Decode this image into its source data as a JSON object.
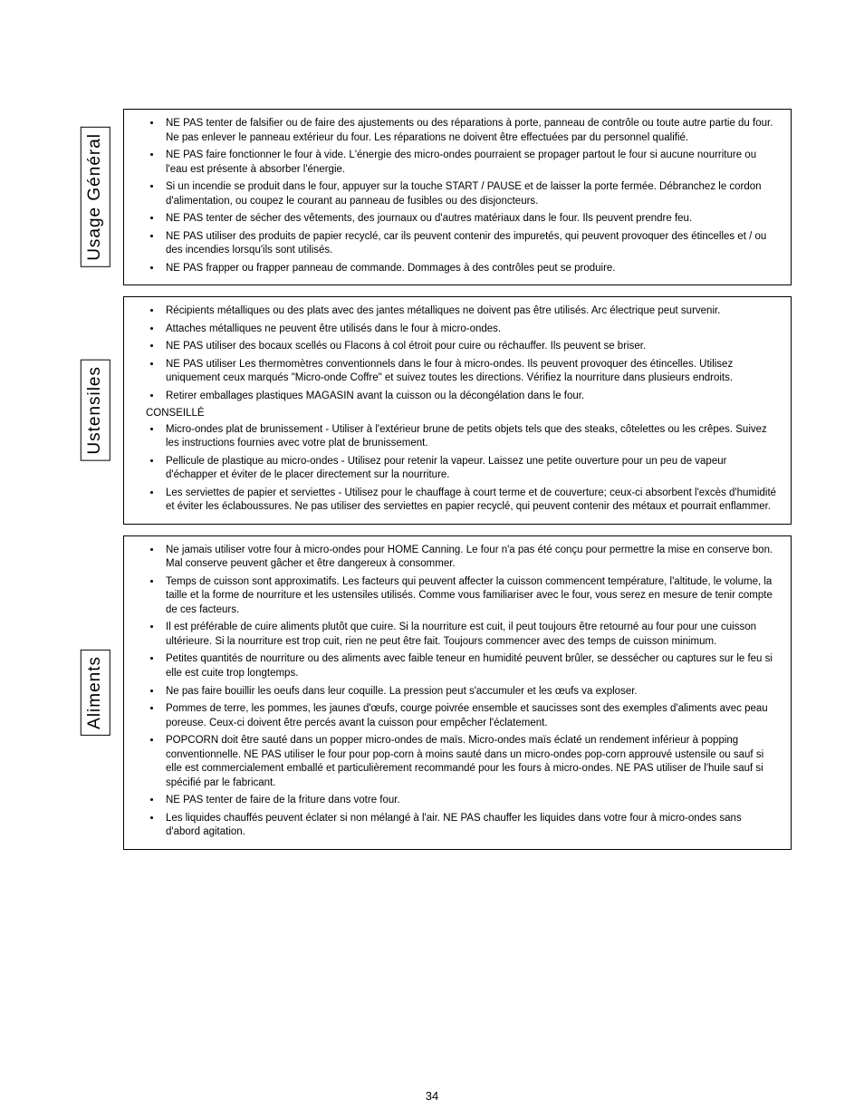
{
  "page_number": "34",
  "sections": [
    {
      "key": "usage",
      "tab_label": "Usage Général",
      "tab_height_hint": 160,
      "items": [
        {
          "type": "li",
          "text": "NE PAS tenter de falsifier ou de faire des ajustements ou des réparations à porte, panneau de contrôle ou toute autre partie du four. Ne pas enlever le panneau extérieur du four. Les réparations ne doivent être effectuées par du personnel qualifié."
        },
        {
          "type": "li",
          "text": "NE PAS faire fonctionner le four à vide. L'énergie des micro-ondes pourraient se propager partout le four si aucune nourriture ou l'eau est présente à absorber l'énergie."
        },
        {
          "type": "li",
          "text": "Si un incendie se produit dans le four, appuyer sur la touche START / PAUSE et de laisser la porte fermée. Débranchez le cordon d'alimentation, ou coupez le courant au panneau de fusibles ou des disjoncteurs."
        },
        {
          "type": "li",
          "text": "NE PAS tenter de sécher des vêtements, des journaux ou d'autres matériaux dans le four. Ils peuvent prendre feu."
        },
        {
          "type": "li",
          "text": "NE PAS utiliser des produits de papier recyclé, car ils peuvent contenir des impuretés, qui peuvent provoquer des étincelles et / ou des incendies lorsqu'ils sont utilisés."
        },
        {
          "type": "li",
          "text": "NE PAS frapper ou frapper panneau de commande. Dommages à des contrôles peut se produire."
        }
      ]
    },
    {
      "key": "ustensiles",
      "tab_label": "Ustensiles",
      "tab_height_hint": 150,
      "items": [
        {
          "type": "li",
          "text": "Récipients métalliques ou des plats avec des jantes métalliques ne doivent pas être utilisés. Arc électrique peut survenir."
        },
        {
          "type": "li",
          "text": "Attaches métalliques ne peuvent être utilisés dans le four à micro-ondes."
        },
        {
          "type": "li",
          "text": "NE PAS utiliser des bocaux scellés ou Flacons à col étroit pour cuire ou réchauffer. Ils peuvent se briser."
        },
        {
          "type": "li",
          "text": "NE PAS utiliser Les thermomètres conventionnels dans le four à micro-ondes. Ils peuvent provoquer des étincelles. Utilisez uniquement ceux marqués \"Micro-onde Coffre\" et suivez toutes les directions. Vérifiez la nourriture dans plusieurs endroits."
        },
        {
          "type": "li",
          "text": "Retirer emballages plastiques MAGASIN avant la cuisson ou la décongélation dans le four."
        },
        {
          "type": "plain",
          "text": "CONSEILLÉ"
        },
        {
          "type": "li",
          "text": "Micro-ondes plat de brunissement - Utiliser à l'extérieur brune de petits objets tels que des steaks, côtelettes ou les crêpes. Suivez les instructions fournies avec votre plat de brunissement."
        },
        {
          "type": "li",
          "text": "Pellicule de plastique au micro-ondes - Utilisez pour retenir la vapeur. Laissez une petite ouverture pour un peu de vapeur d'échapper et éviter de le placer directement sur la nourriture."
        },
        {
          "type": "li",
          "text": "Les serviettes de papier et serviettes - Utilisez pour le chauffage à court terme et de couverture; ceux-ci absorbent l'excès d'humidité et éviter les éclaboussures. Ne pas utiliser des serviettes en papier recyclé, qui peuvent contenir des métaux et pourrait enflammer."
        }
      ]
    },
    {
      "key": "aliments",
      "tab_label": "Aliments",
      "tab_height_hint": 150,
      "items": [
        {
          "type": "li",
          "text": "Ne jamais utiliser votre four à micro-ondes pour HOME Canning. Le four n'a pas été conçu pour permettre la mise en conserve bon. Mal conserve peuvent gâcher et être dangereux à consommer."
        },
        {
          "type": "li",
          "text": "Temps de cuisson sont approximatifs. Les facteurs qui peuvent affecter la cuisson commencent température, l'altitude, le volume, la taille et la forme de nourriture et les ustensiles utilisés. Comme vous familiariser avec le four, vous serez en mesure de tenir compte de ces facteurs."
        },
        {
          "type": "li",
          "text": "Il est préférable de cuire aliments plutôt que cuire. Si la nourriture est cuit, il peut\ntoujours être retourné au four pour une cuisson ultérieure. Si la nourriture est trop cuit, rien ne peut être fait. Toujours commencer avec des temps de cuisson minimum."
        },
        {
          "type": "li",
          "text": "Petites quantités de nourriture ou des aliments avec faible teneur en humidité peuvent brûler, se dessécher ou captures sur le feu si elle est cuite trop longtemps."
        },
        {
          "type": "li",
          "text": "Ne pas faire bouillir les oeufs dans leur coquille. La pression peut s'accumuler et les œufs va exploser."
        },
        {
          "type": "li",
          "text": "Pommes de terre, les pommes, les jaunes d'œufs, courge poivrée ensemble et saucisses sont des exemples d'aliments avec peau poreuse. Ceux-ci doivent être percés avant la cuisson pour empêcher l'éclatement."
        },
        {
          "type": "li",
          "text": "POPCORN doit être sauté dans un popper micro-ondes de maïs. Micro-ondes maïs éclaté un rendement inférieur à popping conventionnelle. NE PAS utiliser le four pour pop-corn à moins sauté dans un micro-ondes pop-corn approuvé ustensile ou sauf si elle est commercialement emballé et particulièrement recommandé pour les fours à micro-ondes. NE PAS utiliser de l'huile sauf si spécifié par le fabricant."
        },
        {
          "type": "li",
          "text": "NE PAS tenter de faire de la friture dans votre four."
        },
        {
          "type": "li",
          "text": "Les liquides chauffés peuvent éclater si non mélangé à l'air. NE PAS chauffer les liquides dans votre four à micro-ondes sans d'abord agitation."
        }
      ]
    }
  ]
}
